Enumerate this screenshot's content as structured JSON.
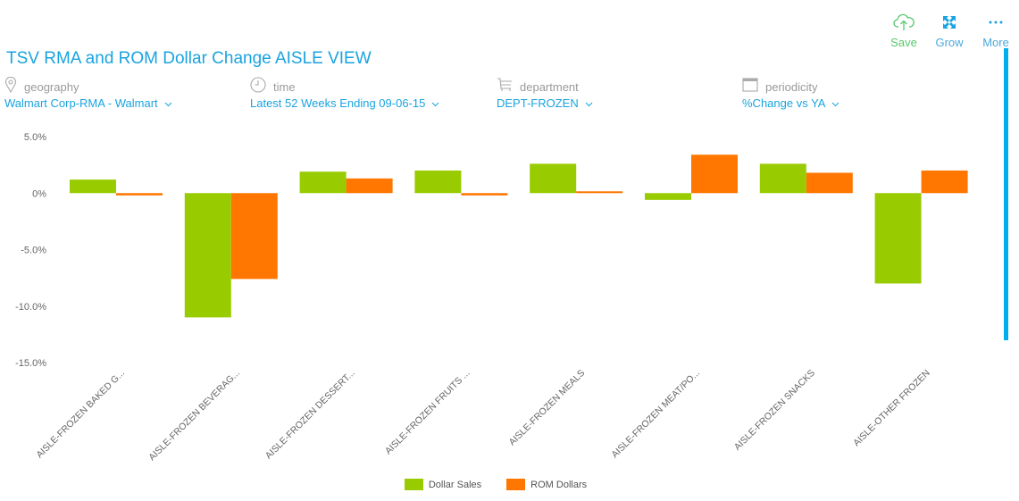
{
  "toolbar": {
    "save_label": "Save",
    "grow_label": "Grow",
    "more_label": "More",
    "save_icon": "cloud-upload-icon",
    "grow_icon": "expand-icon",
    "more_icon": "more-dots-icon"
  },
  "title": "TSV RMA and ROM Dollar Change AISLE VIEW",
  "filters": [
    {
      "label": "geography",
      "value": "Walmart Corp-RMA - Walmart",
      "icon": "map-pin-icon"
    },
    {
      "label": "time",
      "value": "Latest 52 Weeks Ending 09-06-15",
      "icon": "clock-icon"
    },
    {
      "label": "department",
      "value": "DEPT-FROZEN",
      "icon": "cart-icon"
    },
    {
      "label": "periodicity",
      "value": "%Change vs YA",
      "icon": "calendar-icon"
    }
  ],
  "colors": {
    "accent": "#1aa3e0",
    "dollar_sales": "#99cc00",
    "rom_dollars": "#ff7700",
    "save": "#55c86a",
    "scrollbar": "#00aef0"
  },
  "chart_data": {
    "type": "bar",
    "title": "TSV RMA and ROM Dollar Change AISLE VIEW",
    "xlabel": "",
    "ylabel": "",
    "ylim": [
      -15,
      5
    ],
    "yticks": [
      5,
      0,
      -5,
      -10,
      -15
    ],
    "ytick_labels": [
      "5.0%",
      "0%",
      "-5.0%",
      "-10.0%",
      "-15.0%"
    ],
    "grid": false,
    "legend_position": "bottom",
    "categories": [
      "AISLE-FROZEN BAKED G...",
      "AISLE-FROZEN BEVERAG...",
      "AISLE-FROZEN DESSERT...",
      "AISLE-FROZEN FRUITS ...",
      "AISLE-FROZEN MEALS",
      "AISLE-FROZEN MEAT/PO...",
      "AISLE-FROZEN SNACKS",
      "AISLE-OTHER FROZEN"
    ],
    "series": [
      {
        "name": "Dollar Sales",
        "color": "#99cc00",
        "values": [
          1.2,
          -11.0,
          1.9,
          2.0,
          2.6,
          -0.6,
          2.6,
          -8.0
        ]
      },
      {
        "name": "ROM Dollars",
        "color": "#ff7700",
        "values": [
          -0.2,
          -7.6,
          1.3,
          -0.2,
          0.1,
          3.4,
          1.8,
          2.0
        ]
      }
    ]
  }
}
